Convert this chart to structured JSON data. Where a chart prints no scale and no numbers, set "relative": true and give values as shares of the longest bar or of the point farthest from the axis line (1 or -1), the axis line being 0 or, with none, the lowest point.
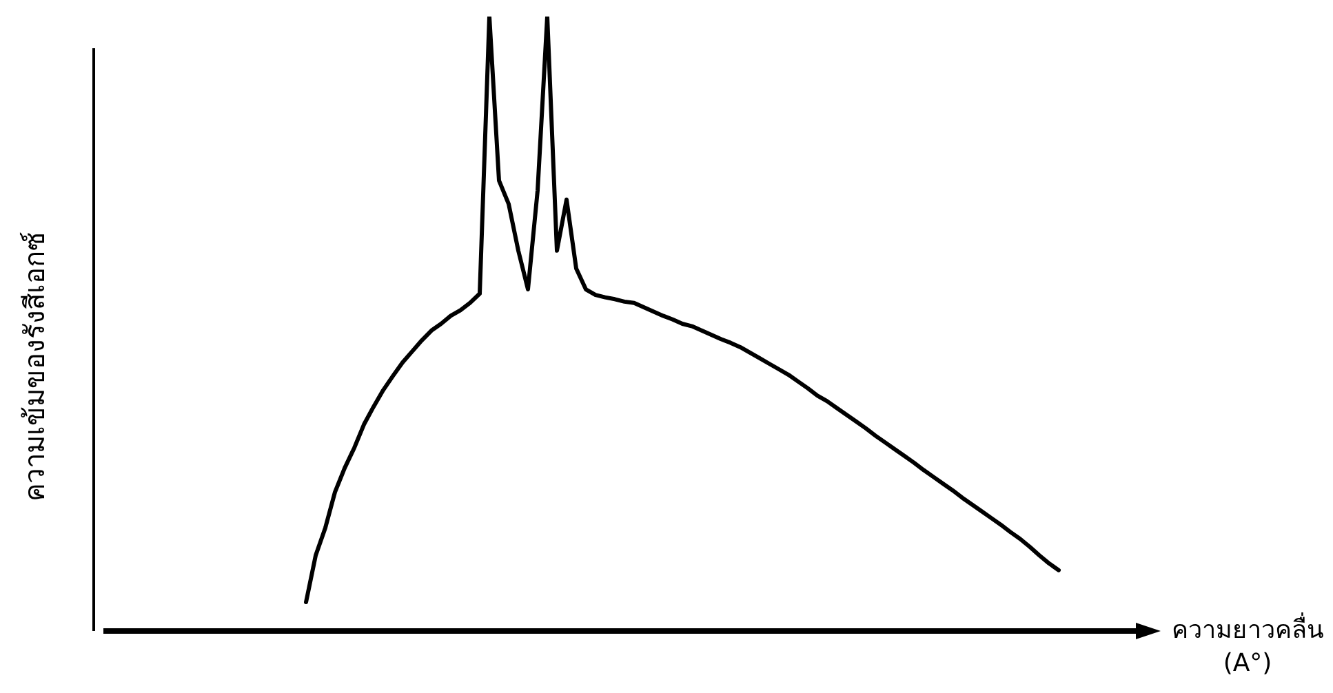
{
  "chart_data": {
    "type": "line",
    "relative": true,
    "marker": "none",
    "xlabel": "ความยาวคลื่น\n(A°)",
    "ylabel": "ความเข้มของรังสีเอกซ์",
    "categories": [
      null,
      null,
      null,
      null,
      null,
      null,
      null,
      null,
      null,
      null,
      null,
      null,
      null,
      null,
      null,
      null,
      null,
      null,
      null,
      null,
      null,
      null,
      null,
      null,
      null,
      null,
      null,
      null,
      null,
      null,
      null,
      null,
      null,
      null,
      null,
      null,
      null,
      null,
      null,
      null,
      null,
      null,
      null,
      null,
      null,
      null,
      null,
      null,
      null,
      null,
      null,
      null,
      null,
      null,
      null,
      null,
      null,
      null,
      null,
      null,
      null,
      null,
      null,
      null,
      null,
      null,
      null,
      null,
      null,
      null,
      null,
      null,
      null,
      null,
      null,
      null,
      null,
      null,
      null,
      null,
      null,
      null,
      null,
      null,
      null,
      null,
      null,
      null,
      null,
      null,
      null,
      null,
      null,
      null,
      null,
      null,
      null,
      null,
      null,
      null,
      null,
      null,
      null,
      null,
      null,
      null,
      null,
      null,
      null,
      null
    ],
    "series": [
      {
        "color": "#000000",
        "values": [
          null,
          null,
          null,
          null,
          null,
          null,
          null,
          null,
          null,
          null,
          null,
          null,
          null,
          null,
          null,
          null,
          null,
          null,
          null,
          null,
          null,
          0.047,
          0.123,
          0.168,
          0.226,
          0.265,
          0.298,
          0.336,
          0.365,
          0.392,
          0.415,
          0.437,
          0.455,
          0.473,
          0.489,
          0.5,
          0.513,
          0.522,
          0.534,
          0.549,
          1,
          0.733,
          0.695,
          0.619,
          0.556,
          0.717,
          1,
          0.619,
          0.702,
          0.59,
          0.556,
          0.547,
          0.543,
          0.54,
          0.536,
          0.534,
          0.527,
          0.52,
          0.513,
          0.507,
          0.5,
          0.496,
          0.489,
          0.482,
          0.475,
          0.469,
          0.462,
          0.453,
          0.444,
          0.435,
          0.426,
          0.417,
          0.406,
          0.395,
          0.383,
          0.374,
          0.363,
          0.352,
          0.341,
          0.33,
          0.318,
          0.307,
          0.296,
          0.285,
          0.274,
          0.262,
          0.251,
          0.24,
          0.229,
          0.217,
          0.206,
          0.195,
          0.184,
          0.173,
          0.161,
          0.15,
          0.137,
          0.123,
          0.11,
          0.099,
          null,
          null,
          null,
          null,
          null,
          null,
          null,
          null,
          null,
          null
        ]
      }
    ]
  }
}
